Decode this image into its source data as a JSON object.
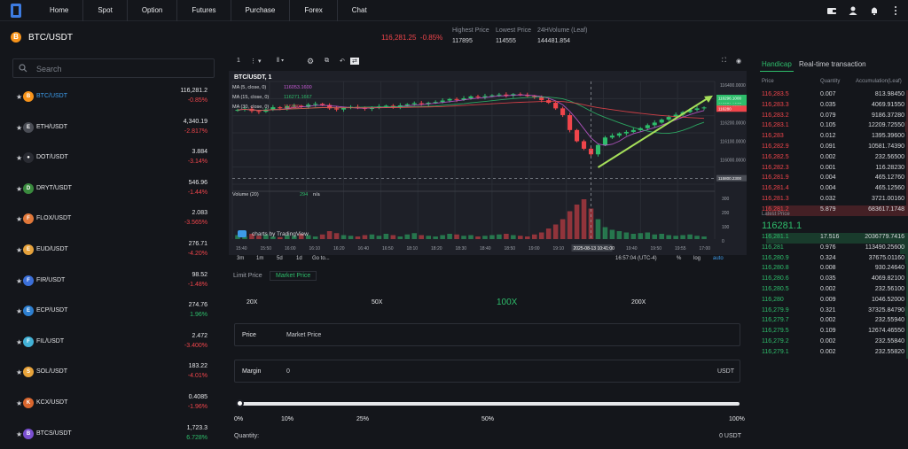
{
  "nav": {
    "items": [
      "Home",
      "Spot",
      "Option",
      "Futures",
      "Purchase",
      "Forex",
      "Chat"
    ]
  },
  "header": {
    "pair": "BTC/USDT",
    "last_price": "116,281.25",
    "change": "-0.85%",
    "stats": [
      {
        "label": "Highest Price",
        "value": "117895"
      },
      {
        "label": "Lowest Price",
        "value": "114555"
      },
      {
        "label": "24HVolume (Leaf)",
        "value": "144481.854"
      }
    ]
  },
  "search": {
    "placeholder": "Search"
  },
  "markets": [
    {
      "name": "BTC/USDT",
      "price": "116,281.2",
      "change": "-0.85%",
      "dir": "down",
      "color": "#f7931a",
      "symbol": "B",
      "active": true
    },
    {
      "name": "ETH/USDT",
      "price": "4,340.19",
      "change": "-2.817%",
      "dir": "down",
      "color": "#4a4d55",
      "symbol": "E"
    },
    {
      "name": "DOT/USDT",
      "price": "3.884",
      "change": "-3.14%",
      "dir": "down",
      "color": "#2a2c33",
      "symbol": "●"
    },
    {
      "name": "DRYT/USDT",
      "price": "546.96",
      "change": "-1.44%",
      "dir": "down",
      "color": "#3a8a3e",
      "symbol": "D"
    },
    {
      "name": "FLOX/USDT",
      "price": "2.083",
      "change": "-3.565%",
      "dir": "down",
      "color": "#e1783a",
      "symbol": "F"
    },
    {
      "name": "EUD/USDT",
      "price": "276.71",
      "change": "-4.20%",
      "dir": "down",
      "color": "#e6a23c",
      "symbol": "E"
    },
    {
      "name": "FIR/USDT",
      "price": "98.52",
      "change": "-1.48%",
      "dir": "down",
      "color": "#3b6fd8",
      "symbol": "F"
    },
    {
      "name": "ECP/USDT",
      "price": "274.76",
      "change": "1.96%",
      "dir": "up",
      "color": "#2d7fd0",
      "symbol": "E"
    },
    {
      "name": "FIL/USDT",
      "price": "2.472",
      "change": "-3.400%",
      "dir": "down",
      "color": "#42b1d6",
      "symbol": "F"
    },
    {
      "name": "SOL/USDT",
      "price": "183.22",
      "change": "-4.01%",
      "dir": "down",
      "color": "#e8a33a",
      "symbol": "S"
    },
    {
      "name": "KCX/USDT",
      "price": "0.4085",
      "change": "-1.96%",
      "dir": "down",
      "color": "#d9662e",
      "symbol": "K"
    },
    {
      "name": "BTCS/USDT",
      "price": "1,723.3",
      "change": "6.728%",
      "dir": "up",
      "color": "#7a4fd0",
      "symbol": "B"
    }
  ],
  "chart": {
    "toolbar_interval": "1",
    "legend_title": "BTC/USDT, 1",
    "ma": [
      {
        "label": "MA (5, close, 0)",
        "value": "116053.1600",
        "color": "#c75bd6"
      },
      {
        "label": "MA (15, close, 0)",
        "value": "116271.1667",
        "color": "#2ebd6b"
      },
      {
        "label": "MA (30, close, 0)",
        "value": "116280",
        "color": "#f0454b"
      }
    ],
    "volume_label": "Volume (20)",
    "volume_value": "n/a",
    "volume_extra": "294",
    "watermark": "charts by TradingView",
    "x_ticks": [
      "15:40",
      "15:50",
      "16:00",
      "16:10",
      "16:20",
      "16:40",
      "16:50",
      "18:10",
      "18:20",
      "18:30",
      "18:40",
      "18:50",
      "19:00",
      "19:10",
      "19:20",
      "19:30",
      "19:40",
      "19:50",
      "19:55",
      "17:00"
    ],
    "cursor_time": "2025-08-13 10:41:00",
    "y_ticks": [
      "116400.0000",
      "116300.0000",
      "116200.0000",
      "116100.0000",
      "116000.0000",
      "115900.0000"
    ],
    "price_tags": [
      "116296.1000",
      "116271.1667",
      "116281.2500",
      "116280",
      "115800.2300"
    ],
    "vol_ticks": [
      "300",
      "200",
      "100",
      "0"
    ],
    "bottom_periods": [
      "3m",
      "1m",
      "5d",
      "1d",
      "Go to..."
    ],
    "bottom_right": [
      "16:57:04 (UTC-4)",
      "%",
      "log",
      "auto"
    ]
  },
  "chart_data": {
    "type": "candlestick",
    "close": [
      116268,
      116274,
      116262,
      116258,
      116270,
      116282,
      116276,
      116288,
      116290,
      116284,
      116296,
      116300,
      116294,
      116276,
      116270,
      116278,
      116284,
      116280,
      116274,
      116278,
      116286,
      116290,
      116284,
      116292,
      116298,
      116304,
      116300,
      116306,
      116310,
      116318,
      116326,
      116322,
      116330,
      116340,
      116336,
      116342,
      116346,
      116350,
      116344,
      116352,
      116348,
      116342,
      116336,
      116320,
      116306,
      116276,
      116240,
      116160,
      116100,
      116060,
      116030,
      116080,
      116120,
      116130,
      116142,
      116150,
      116160,
      116170,
      116186,
      116200,
      116216,
      116230,
      116242,
      116256,
      116268,
      116276,
      116281
    ],
    "volume": [
      30,
      20,
      40,
      25,
      35,
      20,
      15,
      30,
      25,
      40,
      30,
      20,
      35,
      60,
      45,
      30,
      25,
      20,
      30,
      35,
      25,
      40,
      30,
      20,
      35,
      45,
      30,
      25,
      20,
      30,
      40,
      35,
      25,
      30,
      20,
      25,
      30,
      35,
      40,
      30,
      25,
      20,
      35,
      50,
      80,
      110,
      150,
      210,
      260,
      300,
      230,
      150,
      90,
      70,
      60,
      50,
      40,
      45,
      50,
      35,
      40,
      30,
      25,
      30,
      35,
      25,
      20
    ],
    "volume_label": "Volume (20)"
  },
  "order": {
    "tabs": [
      "Limit Price",
      "Market Price"
    ],
    "active_tab": "Market Price",
    "leverage": [
      "20X",
      "50X",
      "100X",
      "200X"
    ],
    "active_leverage": "100X",
    "price_label": "Price",
    "price_value": "Market Price",
    "margin_label": "Margin",
    "margin_value": "0",
    "margin_unit": "USDT",
    "percentages": [
      "0%",
      "10%",
      "25%",
      "50%",
      "100%"
    ],
    "slider_value": 0,
    "quantity_label": "Quantity:",
    "quantity_value": "0 USDT"
  },
  "book": {
    "tabs": [
      "Handicap",
      "Real-time transaction"
    ],
    "active_tab": "Handicap",
    "headers": [
      "Price",
      "Quantity",
      "Accumulation(Leaf)"
    ],
    "asks": [
      [
        "116,283.5",
        "0.007",
        "813.98450"
      ],
      [
        "116,283.3",
        "0.035",
        "4069.91550"
      ],
      [
        "116,283.2",
        "0.079",
        "9186.37280"
      ],
      [
        "116,283.1",
        "0.105",
        "12209.72550"
      ],
      [
        "116,283",
        "0.012",
        "1395.39600"
      ],
      [
        "116,282.9",
        "0.091",
        "10581.74390"
      ],
      [
        "116,282.5",
        "0.002",
        "232.56500"
      ],
      [
        "116,282.3",
        "0.001",
        "116.28230"
      ],
      [
        "116,281.9",
        "0.004",
        "465.12760"
      ],
      [
        "116,281.4",
        "0.004",
        "465.12560"
      ],
      [
        "116,281.3",
        "0.032",
        "3721.00160"
      ],
      [
        "116,281.2",
        "5.879",
        "683617.1748"
      ]
    ],
    "latest_label": "Latest Price",
    "latest_price": "116281.1",
    "bids": [
      [
        "116,281.1",
        "17.516",
        "2036779.7416"
      ],
      [
        "116,281",
        "0.976",
        "113490.25600"
      ],
      [
        "116,280.9",
        "0.324",
        "37675.01160"
      ],
      [
        "116,280.8",
        "0.008",
        "930.24640"
      ],
      [
        "116,280.6",
        "0.035",
        "4069.82100"
      ],
      [
        "116,280.5",
        "0.002",
        "232.56100"
      ],
      [
        "116,280",
        "0.009",
        "1046.52000"
      ],
      [
        "116,279.9",
        "0.321",
        "37325.84790"
      ],
      [
        "116,279.7",
        "0.002",
        "232.55940"
      ],
      [
        "116,279.5",
        "0.109",
        "12674.46550"
      ],
      [
        "116,279.2",
        "0.002",
        "232.55840"
      ],
      [
        "116,279.1",
        "0.002",
        "232.55820"
      ]
    ]
  },
  "colors": {
    "up": "#2ebd6b",
    "down": "#f0454b",
    "bg": "#14161b",
    "panel": "#1e2028"
  }
}
